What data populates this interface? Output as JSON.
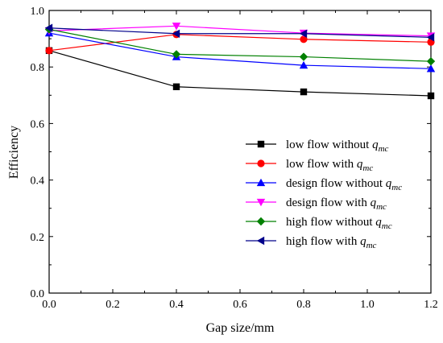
{
  "chart_data": {
    "type": "line",
    "xlabel": "Gap size/mm",
    "ylabel": "Efficiency",
    "x": [
      0.0,
      0.4,
      0.8,
      1.2
    ],
    "xlim": [
      0.0,
      1.2
    ],
    "ylim": [
      0.0,
      1.0
    ],
    "xticks": [
      "0.0",
      "0.2",
      "0.4",
      "0.6",
      "0.8",
      "1.0",
      "1.2"
    ],
    "yticks": [
      "0.0",
      "0.2",
      "0.4",
      "0.6",
      "0.8",
      "1.0"
    ],
    "grid": false,
    "legend_position": "center-right",
    "series": [
      {
        "name": "low flow without q",
        "sub": "mc",
        "color": "#000000",
        "marker": "square",
        "values": [
          0.858,
          0.73,
          0.712,
          0.698
        ]
      },
      {
        "name": "low flow with q",
        "sub": "mc",
        "color": "#ff0000",
        "marker": "circle",
        "values": [
          0.858,
          0.915,
          0.898,
          0.888
        ]
      },
      {
        "name": "design flow without q",
        "sub": "mc",
        "color": "#0000ff",
        "marker": "triangle-up",
        "values": [
          0.92,
          0.836,
          0.806,
          0.794
        ]
      },
      {
        "name": "design flow with q",
        "sub": "mc",
        "color": "#ff00ff",
        "marker": "triangle-down",
        "values": [
          0.928,
          0.945,
          0.92,
          0.91
        ]
      },
      {
        "name": "high flow without q",
        "sub": "mc",
        "color": "#008000",
        "marker": "diamond",
        "values": [
          0.933,
          0.845,
          0.836,
          0.82
        ]
      },
      {
        "name": "high flow with q",
        "sub": "mc",
        "color": "#00008b",
        "marker": "triangle-left",
        "values": [
          0.938,
          0.918,
          0.918,
          0.905
        ]
      }
    ]
  }
}
